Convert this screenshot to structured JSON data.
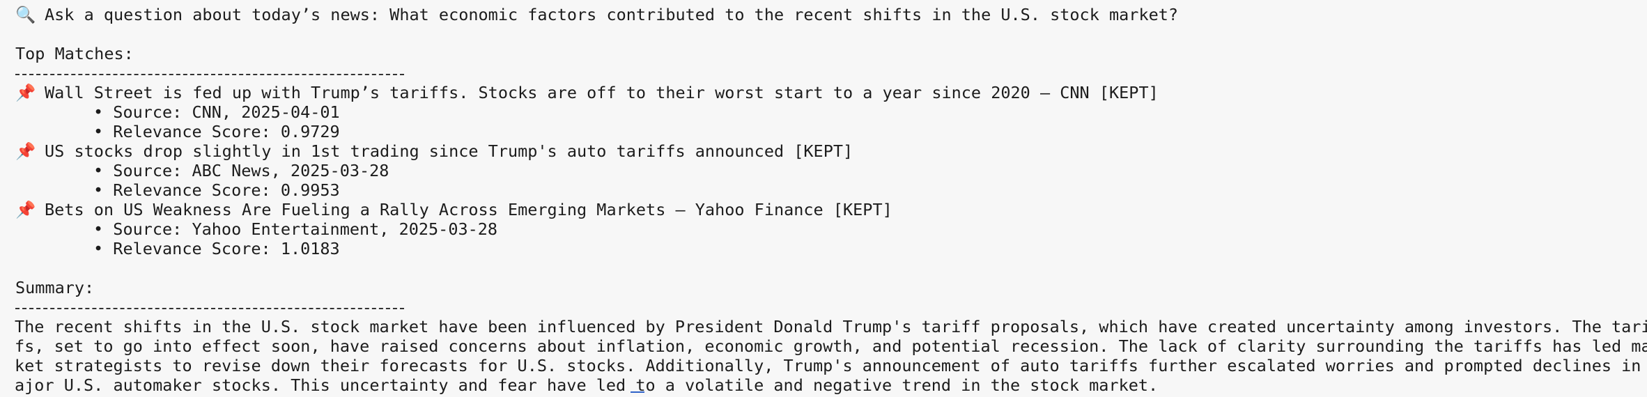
{
  "prompt": {
    "icon": "magnifier-icon",
    "text": "Ask a question about today’s news: What economic factors contributed to the recent shifts in the U.S. stock market?"
  },
  "top_matches": {
    "heading": "Top Matches:",
    "separator": "----------------------------------------",
    "items": [
      {
        "icon": "pushpin-icon",
        "title": "Wall Street is fed up with Trump’s tariffs. Stocks are off to their worst start to a year since 2020 – CNN [KEPT]",
        "source": "• Source: CNN, 2025-04-01",
        "score": "• Relevance Score: 0.9729"
      },
      {
        "icon": "pushpin-icon",
        "title": "US stocks drop slightly in 1st trading since Trump's auto tariffs announced [KEPT]",
        "source": "• Source: ABC News, 2025-03-28",
        "score": "• Relevance Score: 0.9953"
      },
      {
        "icon": "pushpin-icon",
        "title": "Bets on US Weakness Are Fueling a Rally Across Emerging Markets – Yahoo Finance [KEPT]",
        "source": "• Source: Yahoo Entertainment, 2025-03-28",
        "score": "• Relevance Score: 1.0183"
      }
    ]
  },
  "summary": {
    "heading": "Summary:",
    "separator": "----------------------------------------",
    "lines": [
      "The recent shifts in the U.S. stock market have been influenced by President Donald Trump's tariff proposals, which have created uncertainty among investors. The tarif",
      "fs, set to go into effect soon, have raised concerns about inflation, economic growth, and potential recession. The lack of clarity surrounding the tariffs has led mar",
      "ket strategists to revise down their forecasts for U.S. stocks. Additionally, Trump's announcement of auto tariffs further escalated worries and prompted declines in m",
      "ajor U.S. automaker stocks. This uncertainty and fear have led to a volatile and negative trend in the stock market."
    ]
  }
}
